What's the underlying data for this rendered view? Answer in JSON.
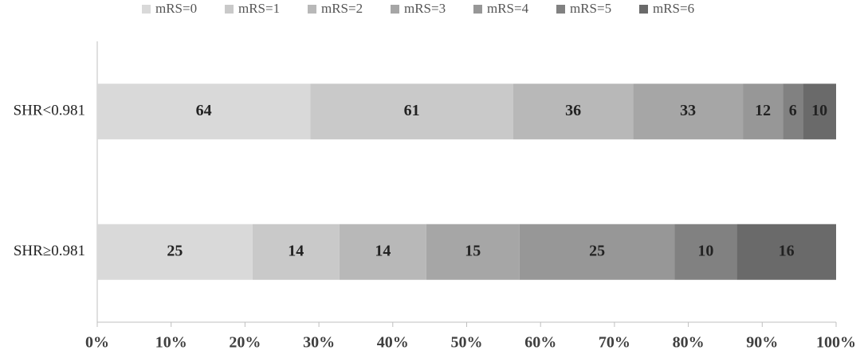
{
  "chart_data": {
    "type": "bar",
    "orientation": "horizontal",
    "stacked": "percent",
    "categories": [
      "SHR<0.981",
      "SHR≥0.981"
    ],
    "series": [
      {
        "name": "mRS=0",
        "color": "#d9d9d9",
        "values": [
          64,
          25
        ]
      },
      {
        "name": "mRS=1",
        "color": "#c9c9c9",
        "values": [
          61,
          14
        ]
      },
      {
        "name": "mRS=2",
        "color": "#b8b8b8",
        "values": [
          36,
          14
        ]
      },
      {
        "name": "mRS=3",
        "color": "#a6a6a6",
        "values": [
          33,
          15
        ]
      },
      {
        "name": "mRS=4",
        "color": "#979797",
        "values": [
          12,
          25
        ]
      },
      {
        "name": "mRS=5",
        "color": "#818181",
        "values": [
          6,
          10
        ]
      },
      {
        "name": "mRS=6",
        "color": "#6a6a6a",
        "values": [
          10,
          16
        ]
      }
    ],
    "xlim": [
      0,
      100
    ],
    "xticks": [
      {
        "value": 0,
        "label": "0%"
      },
      {
        "value": 10,
        "label": "10%"
      },
      {
        "value": 20,
        "label": "20%"
      },
      {
        "value": 30,
        "label": "30%"
      },
      {
        "value": 40,
        "label": "40%"
      },
      {
        "value": 50,
        "label": "50%"
      },
      {
        "value": 60,
        "label": "60%"
      },
      {
        "value": 70,
        "label": "70%"
      },
      {
        "value": 80,
        "label": "80%"
      },
      {
        "value": 90,
        "label": "90%"
      },
      {
        "value": 100,
        "label": "100%"
      }
    ],
    "legend": "top"
  }
}
